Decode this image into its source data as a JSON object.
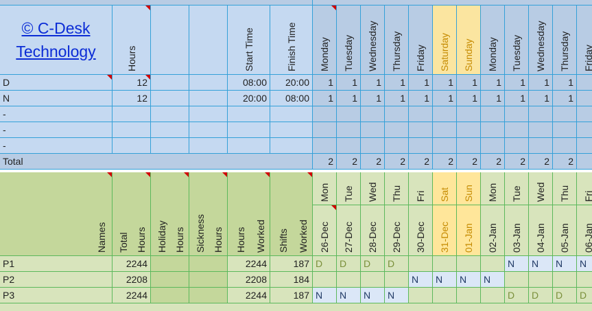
{
  "logo": {
    "line1": "© C-Desk",
    "line2": "Technology"
  },
  "top_headers": {
    "hours": "Hours",
    "start_time": "Start Time",
    "finish_time": "Finish Time"
  },
  "weekdays_top": [
    "Monday",
    "Tuesday",
    "Wednesday",
    "Thursday",
    "Friday",
    "Saturday",
    "Sunday",
    "Monday",
    "Tuesday",
    "Wednesday",
    "Thursday",
    "Friday"
  ],
  "shift_rows": [
    {
      "code": "D",
      "hours": "12",
      "start": "08:00",
      "finish": "20:00",
      "counts": [
        "1",
        "1",
        "1",
        "1",
        "1",
        "1",
        "1",
        "1",
        "1",
        "1",
        "1",
        "1"
      ]
    },
    {
      "code": "N",
      "hours": "12",
      "start": "20:00",
      "finish": "08:00",
      "counts": [
        "1",
        "1",
        "1",
        "1",
        "1",
        "1",
        "1",
        "1",
        "1",
        "1",
        "1",
        "1"
      ]
    },
    {
      "code": "-",
      "hours": "",
      "start": "",
      "finish": "",
      "counts": [
        "",
        "",
        "",
        "",
        "",
        "",
        "",
        "",
        "",
        "",
        "",
        ""
      ]
    },
    {
      "code": "-",
      "hours": "",
      "start": "",
      "finish": "",
      "counts": [
        "",
        "",
        "",
        "",
        "",
        "",
        "",
        "",
        "",
        "",
        "",
        ""
      ]
    },
    {
      "code": "-",
      "hours": "",
      "start": "",
      "finish": "",
      "counts": [
        "",
        "",
        "",
        "",
        "",
        "",
        "",
        "",
        "",
        "",
        "",
        ""
      ]
    }
  ],
  "total_row": {
    "label": "Total",
    "counts": [
      "2",
      "2",
      "2",
      "2",
      "2",
      "2",
      "2",
      "2",
      "2",
      "2",
      "2",
      "2"
    ]
  },
  "staff_headers": {
    "names": "Names",
    "total_hours": [
      "Total",
      "Hours"
    ],
    "holiday_hours": [
      "Holiday",
      "Hours"
    ],
    "sickness_hours": [
      "Sickness",
      "Hours"
    ],
    "hours_worked": [
      "Hours",
      "Worked"
    ],
    "shifts_worked": [
      "Shifts",
      "Worked"
    ]
  },
  "days_short": [
    "Mon",
    "Tue",
    "Wed",
    "Thu",
    "Fri",
    "Sat",
    "Sun",
    "Mon",
    "Tue",
    "Wed",
    "Thu",
    "Fri"
  ],
  "dates": [
    "26-Dec",
    "27-Dec",
    "28-Dec",
    "29-Dec",
    "30-Dec",
    "31-Dec",
    "01-Jan",
    "02-Jan",
    "03-Jan",
    "04-Jan",
    "05-Jan",
    "06-Jan"
  ],
  "staff": [
    {
      "name": "P1",
      "total": "2244",
      "holiday": "",
      "sickness": "",
      "worked": "2244",
      "shifts": "187",
      "days": [
        "D",
        "D",
        "D",
        "D",
        "",
        "",
        "",
        "",
        "N",
        "N",
        "N",
        "N"
      ]
    },
    {
      "name": "P2",
      "total": "2208",
      "holiday": "",
      "sickness": "",
      "worked": "2208",
      "shifts": "184",
      "days": [
        "",
        "",
        "",
        "",
        "N",
        "N",
        "N",
        "N",
        "",
        "",
        "",
        ""
      ]
    },
    {
      "name": "P3",
      "total": "2244",
      "holiday": "",
      "sickness": "",
      "worked": "2244",
      "shifts": "187",
      "days": [
        "N",
        "N",
        "N",
        "N",
        "",
        "",
        "",
        "",
        "D",
        "D",
        "D",
        "D"
      ]
    }
  ],
  "colors": {
    "blue_grid": "#33a0d8",
    "green_grid": "#5bb85b",
    "weekend": "#fbe5a0",
    "comment_marker": "#d00000"
  }
}
